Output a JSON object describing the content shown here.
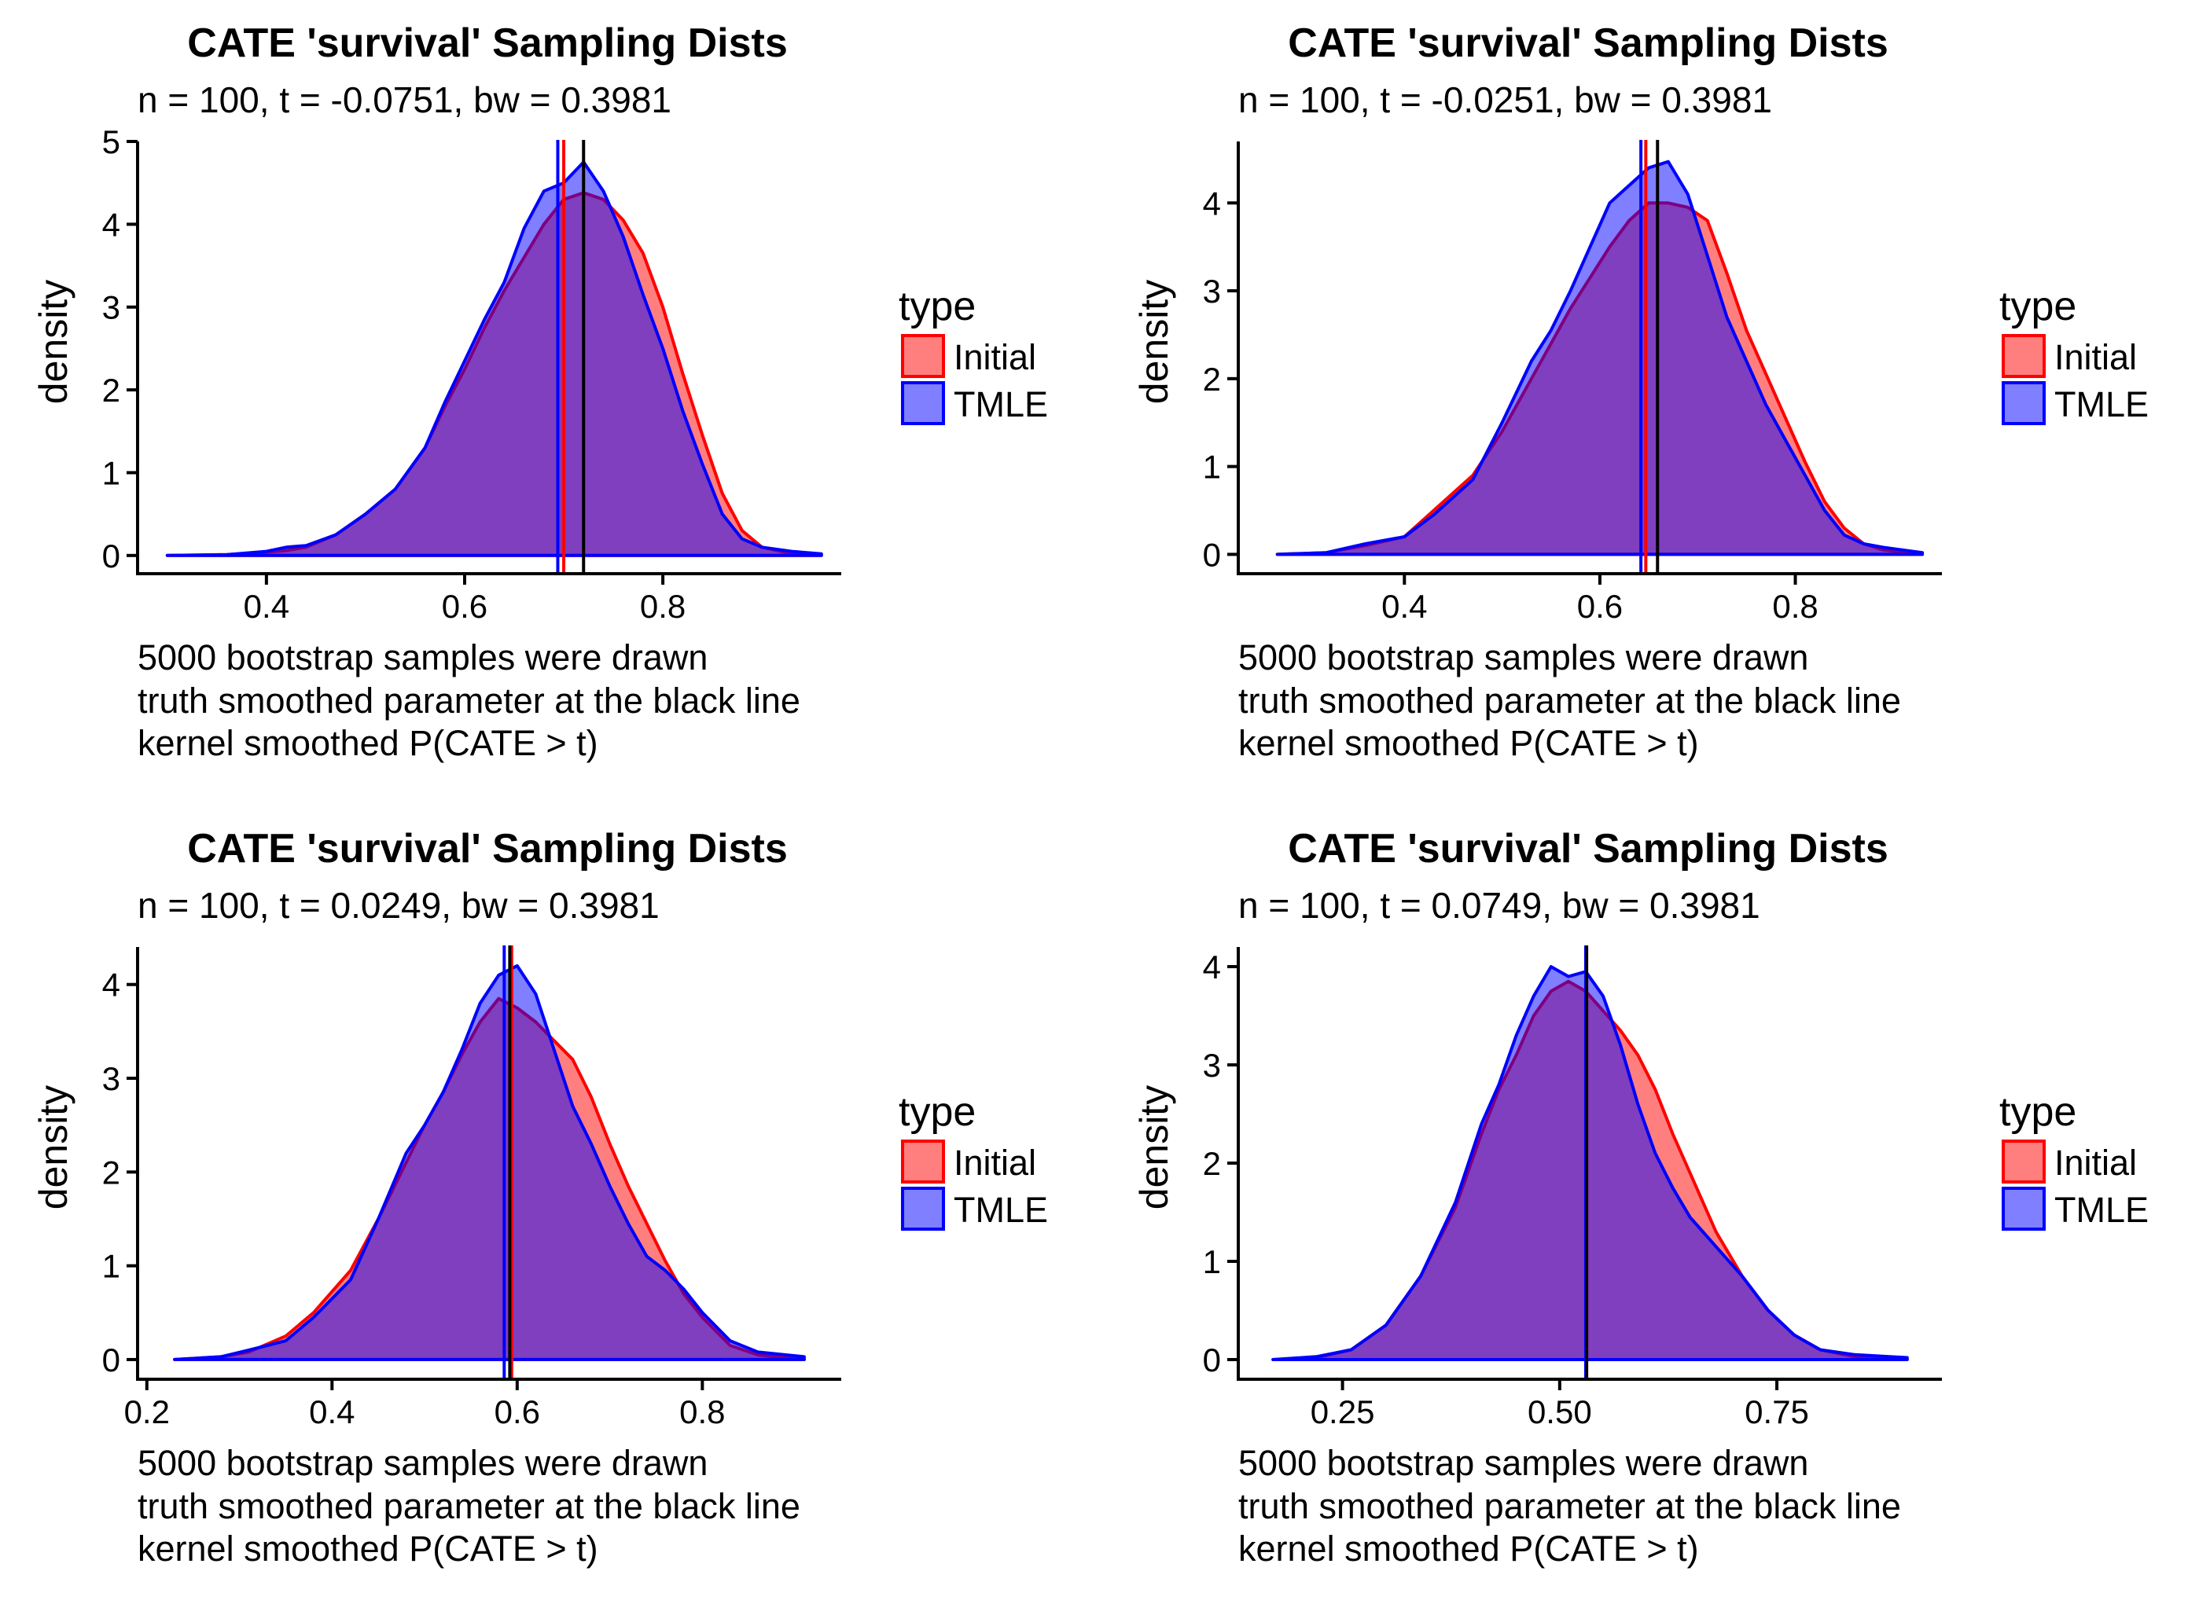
{
  "colors": {
    "initial_fill": "#ff0000",
    "initial_line": "#ff0000",
    "tmle_fill": "#0000ff",
    "tmle_line": "#0000ff",
    "truth_line": "#000000",
    "fill_opacity": 0.5
  },
  "legend": {
    "title": "type",
    "items": [
      "Initial",
      "TMLE"
    ]
  },
  "chart_data": [
    {
      "type": "area",
      "title": "CATE 'survival' Sampling Dists",
      "subtitle": "n = 100, t = -0.0751, bw = 0.3981",
      "xlabel": "",
      "ylabel": "density",
      "caption": [
        "5000 bootstrap samples were drawn",
        "truth smoothed parameter at the black line",
        "kernel smoothed P(CATE > t)"
      ],
      "xlim": [
        0.27,
        0.98
      ],
      "ylim": [
        -0.22,
        5.0
      ],
      "xticks": [
        0.4,
        0.6,
        0.8
      ],
      "xtick_labels": [
        "0.4",
        "0.6",
        "0.8"
      ],
      "yticks": [
        0,
        1,
        2,
        3,
        4,
        5
      ],
      "ytick_labels": [
        "0",
        "1",
        "2",
        "3",
        "4",
        "5"
      ],
      "grid": false,
      "legend_position": "right",
      "series": [
        {
          "name": "Initial",
          "x": [
            0.3,
            0.36,
            0.4,
            0.42,
            0.44,
            0.47,
            0.5,
            0.53,
            0.56,
            0.58,
            0.6,
            0.62,
            0.64,
            0.66,
            0.68,
            0.7,
            0.72,
            0.74,
            0.76,
            0.78,
            0.8,
            0.82,
            0.84,
            0.86,
            0.88,
            0.9,
            0.93,
            0.96
          ],
          "y": [
            0.0,
            0.01,
            0.04,
            0.06,
            0.1,
            0.25,
            0.5,
            0.8,
            1.3,
            1.8,
            2.25,
            2.75,
            3.2,
            3.6,
            4.0,
            4.3,
            4.38,
            4.3,
            4.05,
            3.65,
            3.0,
            2.2,
            1.45,
            0.75,
            0.3,
            0.1,
            0.02,
            0.0
          ]
        },
        {
          "name": "TMLE",
          "x": [
            0.3,
            0.36,
            0.4,
            0.42,
            0.44,
            0.47,
            0.5,
            0.53,
            0.56,
            0.58,
            0.6,
            0.62,
            0.64,
            0.66,
            0.68,
            0.7,
            0.72,
            0.74,
            0.76,
            0.78,
            0.8,
            0.82,
            0.84,
            0.86,
            0.88,
            0.9,
            0.93,
            0.96
          ],
          "y": [
            0.0,
            0.01,
            0.05,
            0.1,
            0.12,
            0.25,
            0.5,
            0.8,
            1.3,
            1.85,
            2.35,
            2.85,
            3.3,
            3.95,
            4.4,
            4.5,
            4.75,
            4.4,
            3.85,
            3.15,
            2.5,
            1.75,
            1.1,
            0.5,
            0.2,
            0.1,
            0.05,
            0.02
          ]
        }
      ],
      "vlines": [
        {
          "name": "Initial",
          "x": 0.7
        },
        {
          "name": "TMLE",
          "x": 0.694
        },
        {
          "name": "Truth",
          "x": 0.72
        }
      ]
    },
    {
      "type": "area",
      "title": "CATE 'survival' Sampling Dists",
      "subtitle": "n = 100, t = -0.0251, bw = 0.3981",
      "xlabel": "",
      "ylabel": "density",
      "caption": [
        "5000 bootstrap samples were drawn",
        "truth smoothed parameter at the black line",
        "kernel smoothed P(CATE > t)"
      ],
      "xlim": [
        0.23,
        0.95
      ],
      "ylim": [
        -0.22,
        4.7
      ],
      "xticks": [
        0.4,
        0.6,
        0.8
      ],
      "xtick_labels": [
        "0.4",
        "0.6",
        "0.8"
      ],
      "yticks": [
        0,
        1,
        2,
        3,
        4
      ],
      "ytick_labels": [
        "0",
        "1",
        "2",
        "3",
        "4"
      ],
      "grid": false,
      "legend_position": "right",
      "series": [
        {
          "name": "Initial",
          "x": [
            0.27,
            0.32,
            0.36,
            0.4,
            0.43,
            0.47,
            0.5,
            0.53,
            0.55,
            0.57,
            0.59,
            0.61,
            0.63,
            0.65,
            0.67,
            0.69,
            0.71,
            0.73,
            0.75,
            0.77,
            0.79,
            0.81,
            0.83,
            0.85,
            0.87,
            0.89,
            0.93
          ],
          "y": [
            0.0,
            0.02,
            0.1,
            0.2,
            0.5,
            0.9,
            1.4,
            2.0,
            2.4,
            2.8,
            3.15,
            3.5,
            3.8,
            4.0,
            4.0,
            3.95,
            3.8,
            3.2,
            2.55,
            2.05,
            1.55,
            1.05,
            0.6,
            0.3,
            0.12,
            0.05,
            0.0
          ]
        },
        {
          "name": "TMLE",
          "x": [
            0.27,
            0.32,
            0.36,
            0.4,
            0.43,
            0.47,
            0.5,
            0.53,
            0.55,
            0.57,
            0.59,
            0.61,
            0.63,
            0.65,
            0.67,
            0.69,
            0.71,
            0.73,
            0.75,
            0.77,
            0.79,
            0.81,
            0.83,
            0.85,
            0.87,
            0.89,
            0.93
          ],
          "y": [
            0.0,
            0.02,
            0.12,
            0.2,
            0.45,
            0.85,
            1.5,
            2.2,
            2.55,
            3.0,
            3.5,
            4.0,
            4.2,
            4.4,
            4.47,
            4.1,
            3.4,
            2.7,
            2.2,
            1.7,
            1.3,
            0.9,
            0.5,
            0.22,
            0.12,
            0.08,
            0.02
          ]
        }
      ],
      "vlines": [
        {
          "name": "Initial",
          "x": 0.647
        },
        {
          "name": "TMLE",
          "x": 0.642
        },
        {
          "name": "Truth",
          "x": 0.659
        }
      ]
    },
    {
      "type": "area",
      "title": "CATE 'survival' Sampling Dists",
      "subtitle": "n = 100, t = 0.0249, bw = 0.3981",
      "xlabel": "",
      "ylabel": "density",
      "caption": [
        "5000 bootstrap samples were drawn",
        "truth smoothed parameter at the black line",
        "kernel smoothed P(CATE > t)"
      ],
      "xlim": [
        0.19,
        0.95
      ],
      "ylim": [
        -0.21,
        4.4
      ],
      "xticks": [
        0.2,
        0.4,
        0.6,
        0.8
      ],
      "xtick_labels": [
        "0.2",
        "0.4",
        "0.6",
        "0.8"
      ],
      "yticks": [
        0,
        1,
        2,
        3,
        4
      ],
      "ytick_labels": [
        "0",
        "1",
        "2",
        "3",
        "4"
      ],
      "grid": false,
      "legend_position": "right",
      "series": [
        {
          "name": "Initial",
          "x": [
            0.23,
            0.28,
            0.31,
            0.35,
            0.38,
            0.42,
            0.45,
            0.48,
            0.5,
            0.52,
            0.54,
            0.56,
            0.58,
            0.6,
            0.62,
            0.64,
            0.66,
            0.68,
            0.7,
            0.72,
            0.74,
            0.76,
            0.78,
            0.8,
            0.83,
            0.86,
            0.91
          ],
          "y": [
            0.0,
            0.03,
            0.08,
            0.25,
            0.5,
            0.95,
            1.5,
            2.1,
            2.5,
            2.85,
            3.25,
            3.6,
            3.85,
            3.75,
            3.6,
            3.4,
            3.2,
            2.8,
            2.3,
            1.85,
            1.45,
            1.05,
            0.7,
            0.45,
            0.15,
            0.05,
            0.0
          ]
        },
        {
          "name": "TMLE",
          "x": [
            0.23,
            0.28,
            0.31,
            0.35,
            0.38,
            0.42,
            0.45,
            0.48,
            0.5,
            0.52,
            0.54,
            0.56,
            0.58,
            0.6,
            0.62,
            0.64,
            0.66,
            0.68,
            0.7,
            0.72,
            0.74,
            0.76,
            0.78,
            0.8,
            0.83,
            0.86,
            0.91
          ],
          "y": [
            0.0,
            0.03,
            0.1,
            0.2,
            0.45,
            0.85,
            1.5,
            2.2,
            2.5,
            2.85,
            3.3,
            3.8,
            4.1,
            4.2,
            3.9,
            3.3,
            2.7,
            2.3,
            1.85,
            1.45,
            1.1,
            0.95,
            0.75,
            0.5,
            0.2,
            0.08,
            0.03
          ]
        }
      ],
      "vlines": [
        {
          "name": "Initial",
          "x": 0.594
        },
        {
          "name": "TMLE",
          "x": 0.586
        },
        {
          "name": "Truth",
          "x": 0.592
        }
      ]
    },
    {
      "type": "area",
      "title": "CATE 'survival' Sampling Dists",
      "subtitle": "n = 100, t = 0.0749, bw = 0.3981",
      "xlabel": "",
      "ylabel": "density",
      "caption": [
        "5000 bootstrap samples were drawn",
        "truth smoothed parameter at the black line",
        "kernel smoothed P(CATE > t)"
      ],
      "xlim": [
        0.13,
        0.94
      ],
      "ylim": [
        -0.2,
        4.2
      ],
      "xticks": [
        0.25,
        0.5,
        0.75
      ],
      "xtick_labels": [
        "0.25",
        "0.50",
        "0.75"
      ],
      "yticks": [
        0,
        1,
        2,
        3,
        4
      ],
      "ytick_labels": [
        "0",
        "1",
        "2",
        "3",
        "4"
      ],
      "grid": false,
      "legend_position": "right",
      "series": [
        {
          "name": "Initial",
          "x": [
            0.17,
            0.22,
            0.26,
            0.3,
            0.34,
            0.38,
            0.41,
            0.43,
            0.45,
            0.47,
            0.49,
            0.51,
            0.53,
            0.55,
            0.57,
            0.59,
            0.61,
            0.63,
            0.65,
            0.68,
            0.71,
            0.74,
            0.77,
            0.8,
            0.84,
            0.9
          ],
          "y": [
            0.0,
            0.02,
            0.1,
            0.35,
            0.85,
            1.55,
            2.3,
            2.75,
            3.1,
            3.5,
            3.75,
            3.85,
            3.75,
            3.55,
            3.35,
            3.1,
            2.75,
            2.3,
            1.9,
            1.3,
            0.85,
            0.5,
            0.25,
            0.1,
            0.03,
            0.0
          ]
        },
        {
          "name": "TMLE",
          "x": [
            0.17,
            0.22,
            0.26,
            0.3,
            0.34,
            0.38,
            0.41,
            0.43,
            0.45,
            0.47,
            0.49,
            0.51,
            0.53,
            0.55,
            0.57,
            0.59,
            0.61,
            0.63,
            0.65,
            0.68,
            0.71,
            0.74,
            0.77,
            0.8,
            0.84,
            0.9
          ],
          "y": [
            0.0,
            0.03,
            0.1,
            0.35,
            0.85,
            1.6,
            2.4,
            2.8,
            3.3,
            3.7,
            4.0,
            3.9,
            3.95,
            3.7,
            3.2,
            2.6,
            2.1,
            1.75,
            1.45,
            1.15,
            0.85,
            0.5,
            0.25,
            0.1,
            0.05,
            0.02
          ]
        }
      ],
      "vlines": [
        {
          "name": "Initial",
          "x": 0.531
        },
        {
          "name": "TMLE",
          "x": 0.53
        },
        {
          "name": "Truth",
          "x": 0.531
        }
      ]
    }
  ]
}
